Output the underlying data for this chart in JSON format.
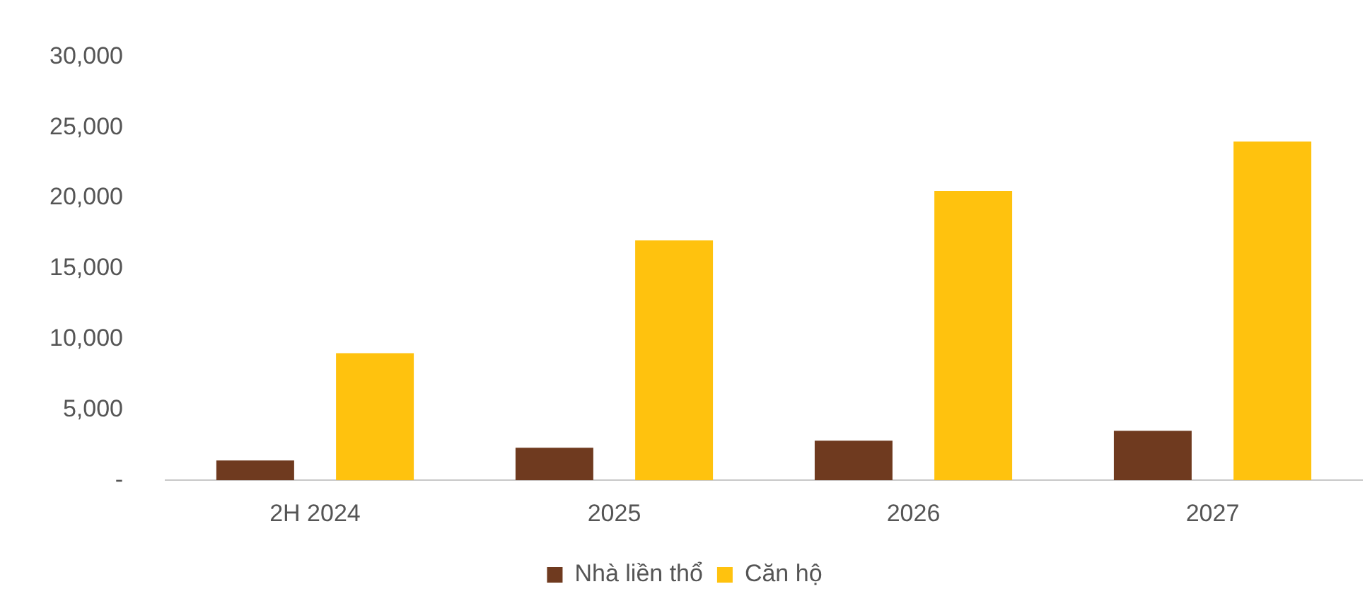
{
  "chart_data": {
    "type": "bar",
    "categories": [
      "2H 2024",
      "2025",
      "2026",
      "2027"
    ],
    "series": [
      {
        "name": "Nhà liền thổ",
        "color": "#6f3a1f",
        "values": [
          1400,
          2300,
          2800,
          3500
        ]
      },
      {
        "name": "Căn hộ",
        "color": "#ffc20e",
        "values": [
          9000,
          17000,
          20500,
          24000
        ]
      }
    ],
    "ylim": [
      0,
      30000
    ],
    "yticks": [
      {
        "value": 0,
        "label": "-"
      },
      {
        "value": 5000,
        "label": "5,000"
      },
      {
        "value": 10000,
        "label": "10,000"
      },
      {
        "value": 15000,
        "label": "15,000"
      },
      {
        "value": 20000,
        "label": "20,000"
      },
      {
        "value": 25000,
        "label": "25,000"
      },
      {
        "value": 30000,
        "label": "30,000"
      }
    ],
    "grid": false,
    "legend": "bottom"
  }
}
